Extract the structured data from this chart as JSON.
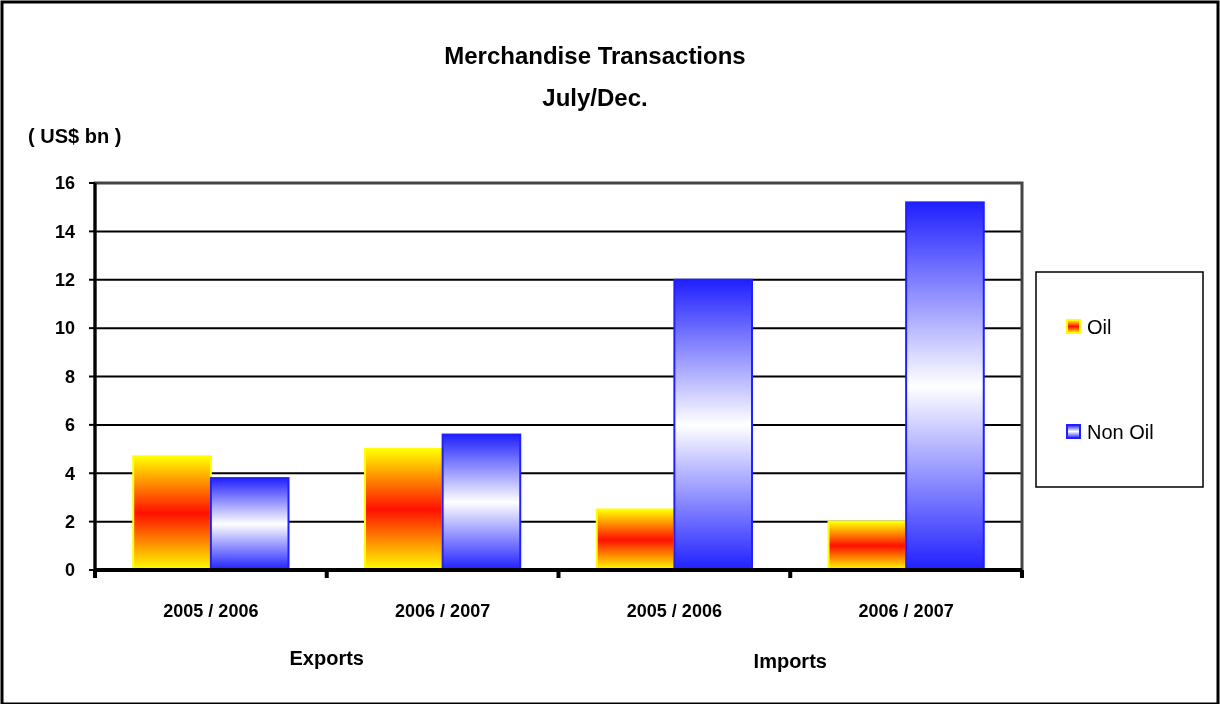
{
  "chart_data": {
    "type": "bar",
    "title": "Merchandise Transactions\nJuly/Dec.",
    "ylabel": "( US$ bn )",
    "categories": [
      "2005 / 2006",
      "2006 / 2007",
      "2005 / 2006",
      "2006 / 2007"
    ],
    "series": [
      {
        "name": "Oil",
        "color": "#ffff00",
        "values": [
          4.7,
          5.0,
          2.5,
          2.0
        ]
      },
      {
        "name": "Non Oil",
        "color": "#2020ff",
        "values": [
          3.8,
          5.6,
          12.0,
          15.2
        ]
      }
    ],
    "ylim": [
      0,
      16
    ],
    "yticks": [
      0,
      2,
      4,
      6,
      8,
      10,
      12,
      14,
      16
    ],
    "grid": "y",
    "legend": "right",
    "annotations": [
      "Exports",
      "Imports"
    ]
  }
}
